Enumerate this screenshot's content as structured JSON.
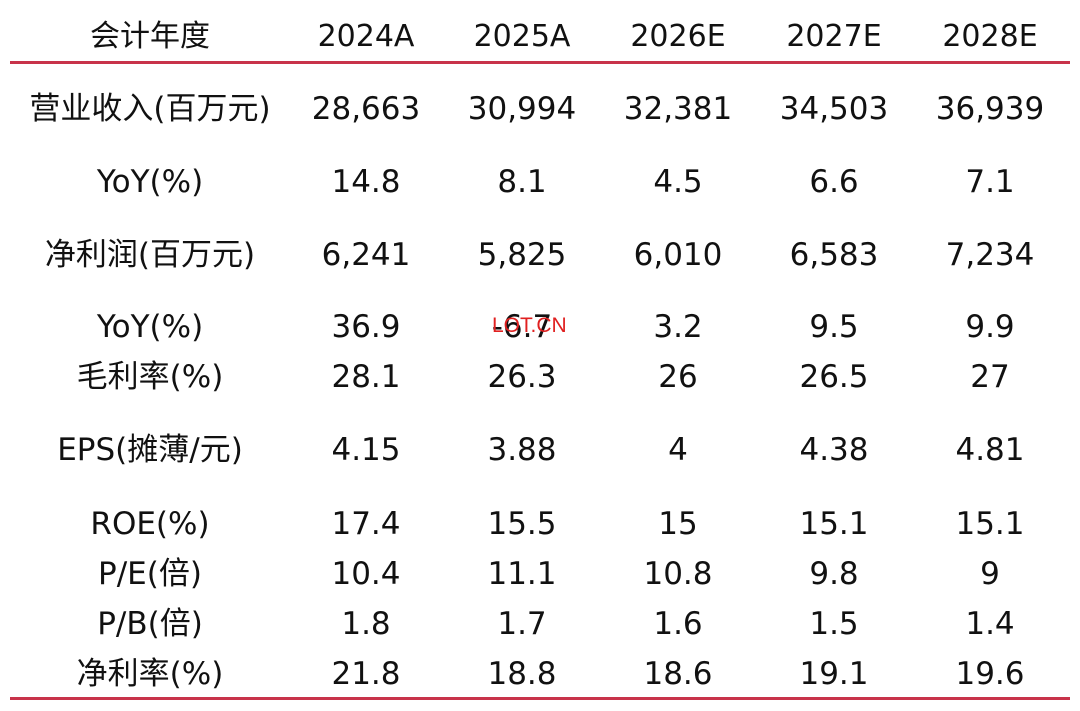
{
  "colors": {
    "rule": "#c8334a",
    "watermark": "#e02020",
    "text": "#111111"
  },
  "table": {
    "headers": [
      "会计年度",
      "2024A",
      "2025A",
      "2026E",
      "2027E",
      "2028E"
    ],
    "rows": [
      [
        "营业收入(百万元)",
        "28,663",
        "30,994",
        "32,381",
        "34,503",
        "36,939"
      ],
      [
        "YoY(%)",
        "14.8",
        "8.1",
        "4.5",
        "6.6",
        "7.1"
      ],
      [
        "净利润(百万元)",
        "6,241",
        "5,825",
        "6,010",
        "6,583",
        "7,234"
      ],
      [
        "YoY(%)",
        "36.9",
        "-6.7",
        "3.2",
        "9.5",
        "9.9"
      ],
      [
        "毛利率(%)",
        "28.1",
        "26.3",
        "26",
        "26.5",
        "27"
      ],
      [
        "EPS(摊薄/元)",
        "4.15",
        "3.88",
        "4",
        "4.38",
        "4.81"
      ],
      [
        "ROE(%)",
        "17.4",
        "15.5",
        "15",
        "15.1",
        "15.1"
      ],
      [
        "P/E(倍)",
        "10.4",
        "11.1",
        "10.8",
        "9.8",
        "9"
      ],
      [
        "P/B(倍)",
        "1.8",
        "1.7",
        "1.6",
        "1.5",
        "1.4"
      ],
      [
        "净利率(%)",
        "21.8",
        "18.8",
        "18.6",
        "19.1",
        "19.6"
      ]
    ]
  },
  "watermark": {
    "text": "LOT.CN"
  }
}
